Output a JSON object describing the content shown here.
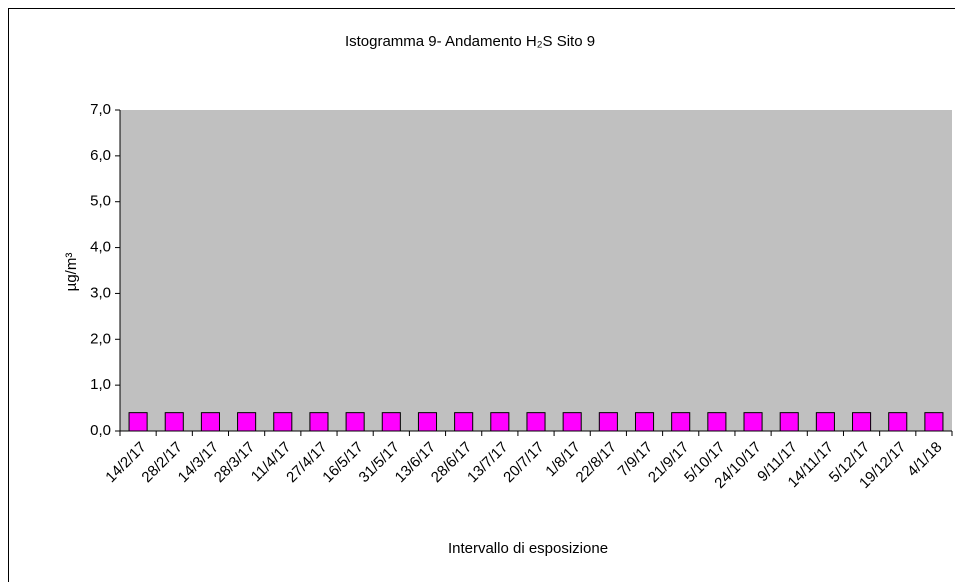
{
  "chart_data": {
    "type": "bar",
    "title": "Istogramma 9- Andamento H₂S Sito 9",
    "x_label": "Intervallo di esposizione",
    "y_label": "µg/m³",
    "categories": [
      "14/2/17",
      "28/2/17",
      "14/3/17",
      "28/3/17",
      "11/4/17",
      "27/4/17",
      "16/5/17",
      "31/5/17",
      "13/6/17",
      "28/6/17",
      "13/7/17",
      "20/7/17",
      "1/8/17",
      "22/8/17",
      "7/9/17",
      "21/9/17",
      "5/10/17",
      "24/10/17",
      "9/11/17",
      "14/11/17",
      "5/12/17",
      "19/12/17",
      "4/1/18"
    ],
    "values": [
      0.4,
      0.4,
      0.4,
      0.4,
      0.4,
      0.4,
      0.4,
      0.4,
      0.4,
      0.4,
      0.4,
      0.4,
      0.4,
      0.4,
      0.4,
      0.4,
      0.4,
      0.4,
      0.4,
      0.4,
      0.4,
      0.4,
      0.4
    ],
    "color": "#ff00ff",
    "plot_background": "#c0c0c0",
    "ylim": [
      0,
      7
    ],
    "yticks": [
      {
        "value": 0,
        "label": "0,0"
      },
      {
        "value": 1,
        "label": "1,0"
      },
      {
        "value": 2,
        "label": "2,0"
      },
      {
        "value": 3,
        "label": "3,0"
      },
      {
        "value": 4,
        "label": "4,0"
      },
      {
        "value": 5,
        "label": "5,0"
      },
      {
        "value": 6,
        "label": "6,0"
      },
      {
        "value": 7,
        "label": "7,0"
      }
    ],
    "grid": false
  }
}
